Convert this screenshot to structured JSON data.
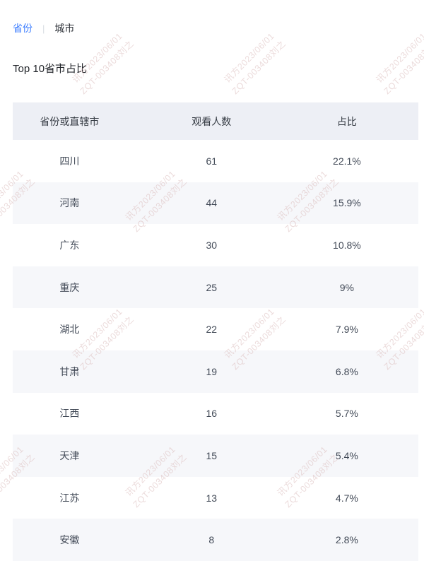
{
  "tabs": {
    "province_label": "省份",
    "divider": "|",
    "city_label": "城市"
  },
  "page_title": "Top 10省市占比",
  "table": {
    "headers": [
      "省份或直辖市",
      "观看人数",
      "占比"
    ],
    "rows": [
      {
        "name": "四川",
        "viewers": "61",
        "share": "22.1%"
      },
      {
        "name": "河南",
        "viewers": "44",
        "share": "15.9%"
      },
      {
        "name": "广东",
        "viewers": "30",
        "share": "10.8%"
      },
      {
        "name": "重庆",
        "viewers": "25",
        "share": "9%"
      },
      {
        "name": "湖北",
        "viewers": "22",
        "share": "7.9%"
      },
      {
        "name": "甘肃",
        "viewers": "19",
        "share": "6.8%"
      },
      {
        "name": "江西",
        "viewers": "16",
        "share": "5.7%"
      },
      {
        "name": "天津",
        "viewers": "15",
        "share": "5.4%"
      },
      {
        "name": "江苏",
        "viewers": "13",
        "share": "4.7%"
      },
      {
        "name": "安徽",
        "viewers": "8",
        "share": "2.8%"
      }
    ]
  },
  "watermark": {
    "line1": "讯方2023/06/01",
    "line2": "ZQT-003408刘之"
  },
  "colors": {
    "accent": "#3d7eff",
    "header_bg": "#edeff5",
    "alt_row_bg": "#f6f7fa",
    "watermark": "#d9b8b8"
  }
}
